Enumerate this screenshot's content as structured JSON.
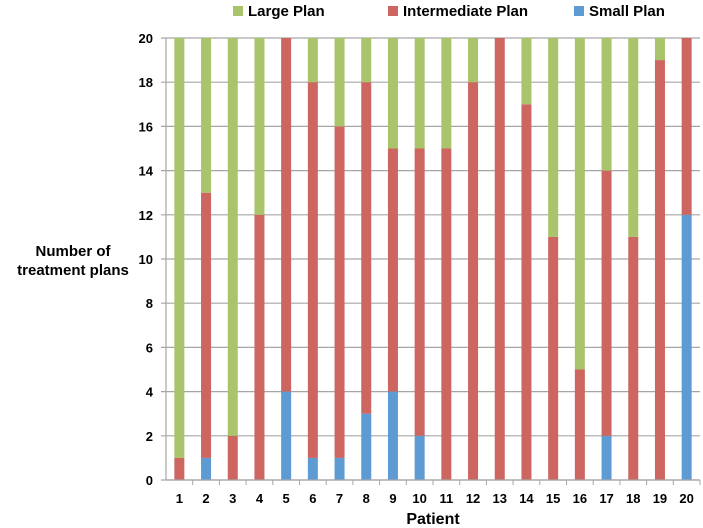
{
  "chart_data": {
    "type": "bar",
    "stacked": true,
    "xlabel": "Patient",
    "ylabel": "Number of treatment plans",
    "ylabel_lines": [
      "Number of",
      "treatment plans"
    ],
    "ylim": [
      0,
      20
    ],
    "yticks": [
      0,
      2,
      4,
      6,
      8,
      10,
      12,
      14,
      16,
      18,
      20
    ],
    "grid": true,
    "legend_position": "top",
    "categories": [
      "1",
      "2",
      "3",
      "4",
      "5",
      "6",
      "7",
      "8",
      "9",
      "10",
      "11",
      "12",
      "13",
      "14",
      "15",
      "16",
      "17",
      "18",
      "19",
      "20"
    ],
    "series": [
      {
        "name": "Small Plan",
        "color": "#5e9bd3",
        "values": [
          0,
          1,
          0,
          0,
          4,
          1,
          1,
          3,
          4,
          2,
          0,
          0,
          0,
          0,
          0,
          0,
          2,
          0,
          0,
          12
        ]
      },
      {
        "name": "Intermediate Plan",
        "color": "#cd6560",
        "values": [
          1,
          12,
          2,
          12,
          16,
          17,
          15,
          15,
          11,
          13,
          15,
          18,
          20,
          17,
          11,
          5,
          12,
          11,
          19,
          8
        ]
      },
      {
        "name": "Large Plan",
        "color": "#a9c46a",
        "values": [
          19,
          7,
          18,
          8,
          0,
          2,
          4,
          2,
          5,
          5,
          5,
          2,
          0,
          3,
          9,
          15,
          6,
          9,
          1,
          0
        ]
      }
    ],
    "legend_order": [
      "Large Plan",
      "Intermediate Plan",
      "Small Plan"
    ]
  }
}
